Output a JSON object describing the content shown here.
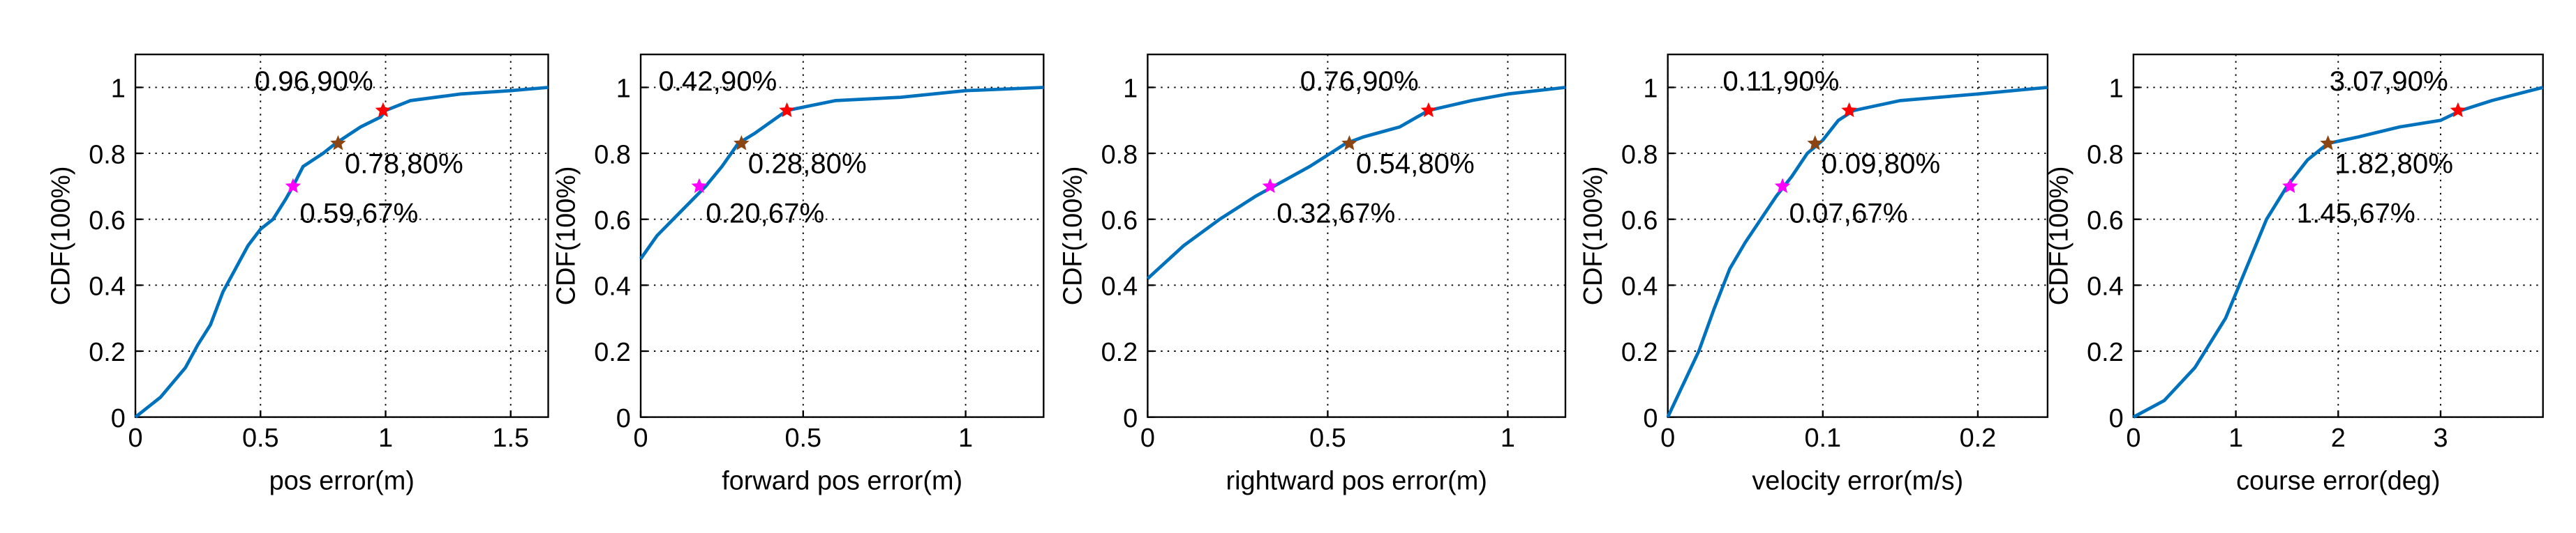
{
  "chart_data": [
    {
      "type": "line",
      "xlabel": "pos error(m)",
      "ylabel": "CDF(100%)",
      "xlim": [
        0,
        1.65
      ],
      "ylim": [
        0,
        1.1
      ],
      "xticks": [
        0,
        0.5,
        1,
        1.5
      ],
      "yticks": [
        0,
        0.2,
        0.4,
        0.6,
        0.8,
        1
      ],
      "grid": true,
      "series": [
        {
          "color": "#0072bd",
          "x": [
            0,
            0.05,
            0.1,
            0.2,
            0.25,
            0.3,
            0.35,
            0.4,
            0.45,
            0.5,
            0.55,
            0.6,
            0.63,
            0.67,
            0.75,
            0.8,
            0.9,
            0.98,
            1.0,
            1.1,
            1.3,
            1.5,
            1.65
          ],
          "values": [
            0,
            0.03,
            0.06,
            0.15,
            0.22,
            0.28,
            0.38,
            0.45,
            0.52,
            0.57,
            0.6,
            0.66,
            0.7,
            0.76,
            0.8,
            0.83,
            0.88,
            0.91,
            0.93,
            0.96,
            0.98,
            0.99,
            1.0
          ]
        }
      ],
      "annotations": [
        {
          "text": "0.59,67%",
          "x": 0.63,
          "y": 0.7,
          "color": "#ff00ff"
        },
        {
          "text": "0.78,80%",
          "x": 0.81,
          "y": 0.83,
          "color": "#8b4513"
        },
        {
          "text": "0.96,90%",
          "x": 0.99,
          "y": 0.93,
          "color": "#ff0000"
        }
      ]
    },
    {
      "type": "line",
      "xlabel": "forward pos error(m)",
      "ylabel": "CDF(100%)",
      "xlim": [
        0,
        1.24
      ],
      "ylim": [
        0,
        1.1
      ],
      "xticks": [
        0,
        0.5,
        1
      ],
      "yticks": [
        0,
        0.2,
        0.4,
        0.6,
        0.8,
        1
      ],
      "grid": true,
      "series": [
        {
          "color": "#0072bd",
          "x": [
            0,
            0.05,
            0.1,
            0.15,
            0.2,
            0.25,
            0.3,
            0.35,
            0.45,
            0.5,
            0.6,
            0.8,
            1.0,
            1.24
          ],
          "values": [
            0.48,
            0.55,
            0.6,
            0.65,
            0.7,
            0.76,
            0.83,
            0.86,
            0.93,
            0.94,
            0.96,
            0.97,
            0.99,
            1.0
          ]
        }
      ],
      "annotations": [
        {
          "text": "0.20,67%",
          "x": 0.18,
          "y": 0.7,
          "color": "#ff00ff"
        },
        {
          "text": "0.28,80%",
          "x": 0.31,
          "y": 0.83,
          "color": "#8b4513"
        },
        {
          "text": "0.42,90%",
          "x": 0.45,
          "y": 0.93,
          "color": "#ff0000"
        }
      ]
    },
    {
      "type": "line",
      "xlabel": "rightward pos error(m)",
      "ylabel": "CDF(100%)",
      "xlim": [
        0,
        1.16
      ],
      "ylim": [
        0,
        1.1
      ],
      "xticks": [
        0,
        0.5,
        1
      ],
      "yticks": [
        0,
        0.2,
        0.4,
        0.6,
        0.8,
        1
      ],
      "grid": true,
      "series": [
        {
          "color": "#0072bd",
          "x": [
            0,
            0.1,
            0.2,
            0.3,
            0.35,
            0.45,
            0.55,
            0.6,
            0.7,
            0.78,
            0.9,
            1.0,
            1.16
          ],
          "values": [
            0.42,
            0.52,
            0.6,
            0.67,
            0.7,
            0.76,
            0.83,
            0.85,
            0.88,
            0.93,
            0.96,
            0.98,
            1.0
          ]
        }
      ],
      "annotations": [
        {
          "text": "0.32,67%",
          "x": 0.34,
          "y": 0.7,
          "color": "#ff00ff"
        },
        {
          "text": "0.54,80%",
          "x": 0.56,
          "y": 0.83,
          "color": "#8b4513"
        },
        {
          "text": "0.76,90%",
          "x": 0.78,
          "y": 0.93,
          "color": "#ff0000"
        }
      ]
    },
    {
      "type": "line",
      "xlabel": "velocity error(m/s)",
      "ylabel": "CDF(100%)",
      "xlim": [
        0,
        0.245
      ],
      "ylim": [
        0,
        1.1
      ],
      "xticks": [
        0,
        0.1,
        0.2
      ],
      "yticks": [
        0,
        0.2,
        0.4,
        0.6,
        0.8,
        1
      ],
      "grid": true,
      "series": [
        {
          "color": "#0072bd",
          "x": [
            0,
            0.01,
            0.02,
            0.03,
            0.04,
            0.05,
            0.06,
            0.07,
            0.08,
            0.09,
            0.1,
            0.11,
            0.12,
            0.15,
            0.2,
            0.245
          ],
          "values": [
            0,
            0.1,
            0.2,
            0.33,
            0.45,
            0.53,
            0.6,
            0.67,
            0.73,
            0.8,
            0.84,
            0.9,
            0.93,
            0.96,
            0.98,
            1.0
          ]
        }
      ],
      "annotations": [
        {
          "text": "0.07,67%",
          "x": 0.074,
          "y": 0.7,
          "color": "#ff00ff"
        },
        {
          "text": "0.09,80%",
          "x": 0.095,
          "y": 0.83,
          "color": "#8b4513"
        },
        {
          "text": "0.11,90%",
          "x": 0.117,
          "y": 0.93,
          "color": "#ff0000"
        }
      ]
    },
    {
      "type": "line",
      "xlabel": "course error(deg)",
      "ylabel": "CDF(100%)",
      "xlim": [
        0,
        4
      ],
      "ylim": [
        0,
        1.1
      ],
      "xticks": [
        0,
        1,
        2,
        3
      ],
      "yticks": [
        0,
        0.2,
        0.4,
        0.6,
        0.8,
        1
      ],
      "grid": true,
      "series": [
        {
          "color": "#0072bd",
          "x": [
            0,
            0.3,
            0.6,
            0.9,
            1.1,
            1.3,
            1.5,
            1.7,
            1.9,
            2.2,
            2.6,
            3.0,
            3.2,
            3.5,
            4.0
          ],
          "values": [
            0,
            0.05,
            0.15,
            0.3,
            0.45,
            0.6,
            0.7,
            0.78,
            0.83,
            0.85,
            0.88,
            0.9,
            0.93,
            0.96,
            1.0
          ]
        }
      ],
      "annotations": [
        {
          "text": "1.45,67%",
          "x": 1.53,
          "y": 0.7,
          "color": "#ff00ff"
        },
        {
          "text": "1.82,80%",
          "x": 1.9,
          "y": 0.83,
          "color": "#8b4513"
        },
        {
          "text": "3.07,90%",
          "x": 3.17,
          "y": 0.93,
          "color": "#ff0000"
        }
      ]
    }
  ]
}
